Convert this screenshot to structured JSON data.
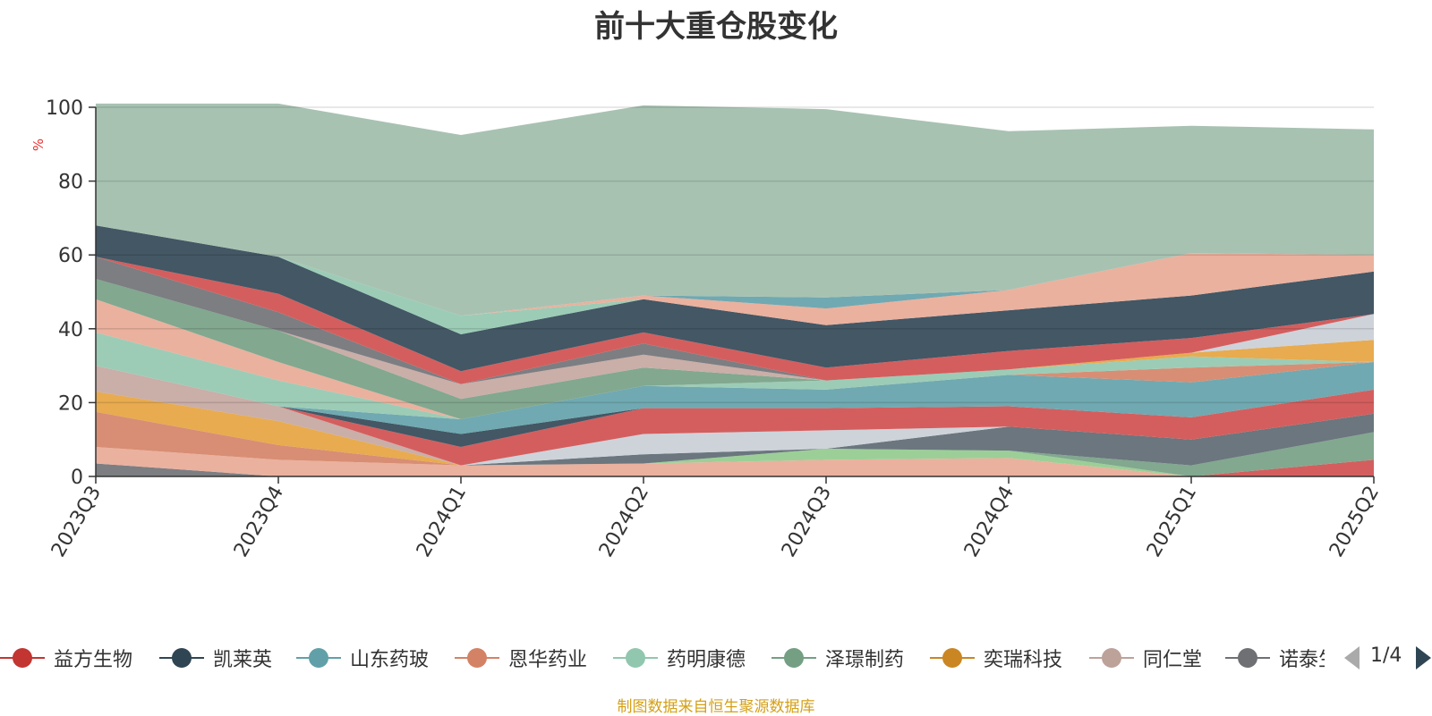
{
  "chart_data": {
    "type": "area",
    "title": "前十大重仓股变化",
    "ylabel": "%",
    "ylim": [
      0,
      100
    ],
    "yticks": [
      "0",
      "20",
      "40",
      "60",
      "80",
      "100"
    ],
    "grid": true,
    "categories": [
      "2023Q3",
      "2023Q4",
      "2024Q1",
      "2024Q2",
      "2024Q3",
      "2024Q4",
      "2025Q1",
      "2025Q2"
    ],
    "layers": [
      {
        "color": "#6e7074",
        "values": [
          3.5,
          0,
          0,
          0,
          0,
          0,
          0,
          0
        ]
      },
      {
        "color": "#e8a893",
        "values": [
          4.5,
          4.5,
          3,
          3.5,
          4.5,
          5,
          0,
          0
        ]
      },
      {
        "color": "#91ca8c",
        "values": [
          0,
          0,
          0,
          0,
          3,
          2,
          0,
          0
        ]
      },
      {
        "color": "#d48265",
        "values": [
          9.5,
          4,
          0,
          0,
          0,
          0,
          0,
          0
        ]
      },
      {
        "color": "#e6a23c",
        "values": [
          5.5,
          6.5,
          0,
          0,
          0,
          0,
          0,
          0
        ]
      },
      {
        "color": "#c4a59f",
        "values": [
          7,
          4,
          0,
          0,
          0,
          0,
          0,
          0
        ]
      },
      {
        "color": "#cf4c4c",
        "values": [
          0,
          0,
          0,
          0,
          0,
          0,
          0,
          4.5
        ]
      },
      {
        "color": "#749f83",
        "values": [
          0,
          0,
          0,
          0,
          0,
          0,
          3,
          7.5
        ]
      },
      {
        "color": "#5b6770",
        "values": [
          0,
          0,
          0,
          2.5,
          0,
          6.5,
          7,
          5
        ]
      },
      {
        "color": "#c9ced6",
        "values": [
          0,
          0,
          0,
          5.5,
          5,
          0,
          0,
          0
        ]
      },
      {
        "color": "#cf4c4c",
        "values": [
          0,
          0,
          5,
          7,
          6,
          5.5,
          6,
          6.5
        ]
      },
      {
        "color": "#2f4554",
        "values": [
          0,
          0,
          3.5,
          0,
          0,
          0,
          0,
          0
        ]
      },
      {
        "color": "#61a0a8",
        "values": [
          0,
          0,
          4,
          6,
          5,
          8.5,
          9.5,
          7.5
        ]
      },
      {
        "color": "#d48265",
        "values": [
          0,
          0,
          0,
          0,
          0,
          0,
          4,
          0
        ]
      },
      {
        "color": "#91c7ae",
        "values": [
          9,
          7,
          0,
          0,
          0,
          0,
          0,
          0
        ]
      },
      {
        "color": "#e8a893",
        "values": [
          9,
          5,
          0,
          0,
          0,
          0,
          0,
          0
        ]
      },
      {
        "color": "#91c7ae",
        "values": [
          0,
          0,
          0,
          0,
          2.5,
          1.5,
          3,
          0
        ]
      },
      {
        "color": "#749f83",
        "values": [
          5.5,
          8.5,
          5.5,
          5,
          0,
          0,
          0,
          0
        ]
      },
      {
        "color": "#e6a23c",
        "values": [
          0,
          0,
          0,
          0,
          0,
          0,
          1,
          6
        ]
      },
      {
        "color": "#c9ced6",
        "values": [
          0,
          0,
          0,
          0,
          0,
          0,
          0,
          7
        ]
      },
      {
        "color": "#c4a59f",
        "values": [
          0,
          0,
          4,
          3.5,
          0,
          0,
          0,
          0
        ]
      },
      {
        "color": "#6e7074",
        "values": [
          6,
          5,
          0,
          3,
          0,
          0,
          0,
          0
        ]
      },
      {
        "color": "#cf4c4c",
        "values": [
          0,
          5,
          3.5,
          3,
          3.5,
          5,
          4,
          0
        ]
      },
      {
        "color": "#2f4554",
        "values": [
          8.5,
          10,
          10,
          9,
          11.5,
          11,
          11.5,
          11.5
        ]
      },
      {
        "color": "#91c7ae",
        "values": [
          0,
          0,
          5,
          0,
          0,
          0,
          0,
          0
        ]
      },
      {
        "color": "#e8a893",
        "values": [
          0,
          0,
          0,
          1,
          4.5,
          5.5,
          11.5,
          4.5
        ]
      },
      {
        "color": "#61a0a8",
        "values": [
          0,
          0,
          0,
          0,
          3,
          0,
          0,
          0
        ]
      },
      {
        "color": "#9fbbaa",
        "values": [
          33,
          41.5,
          49,
          51.5,
          51,
          43,
          34.5,
          34
        ]
      }
    ]
  },
  "legend": {
    "items": [
      {
        "label": "益方生物",
        "color": "#c23531"
      },
      {
        "label": "凯莱英",
        "color": "#2f4554"
      },
      {
        "label": "山东药玻",
        "color": "#61a0a8"
      },
      {
        "label": "恩华药业",
        "color": "#d48265"
      },
      {
        "label": "药明康德",
        "color": "#91c7ae"
      },
      {
        "label": "泽璟制药",
        "color": "#749f83"
      },
      {
        "label": "奕瑞科技",
        "color": "#ca8622"
      },
      {
        "label": "同仁堂",
        "color": "#bda29a"
      },
      {
        "label": "诺泰生物",
        "color": "#6e7074"
      }
    ],
    "page_indicator": "1/4"
  },
  "source_note": "制图数据来自恒生聚源数据库"
}
